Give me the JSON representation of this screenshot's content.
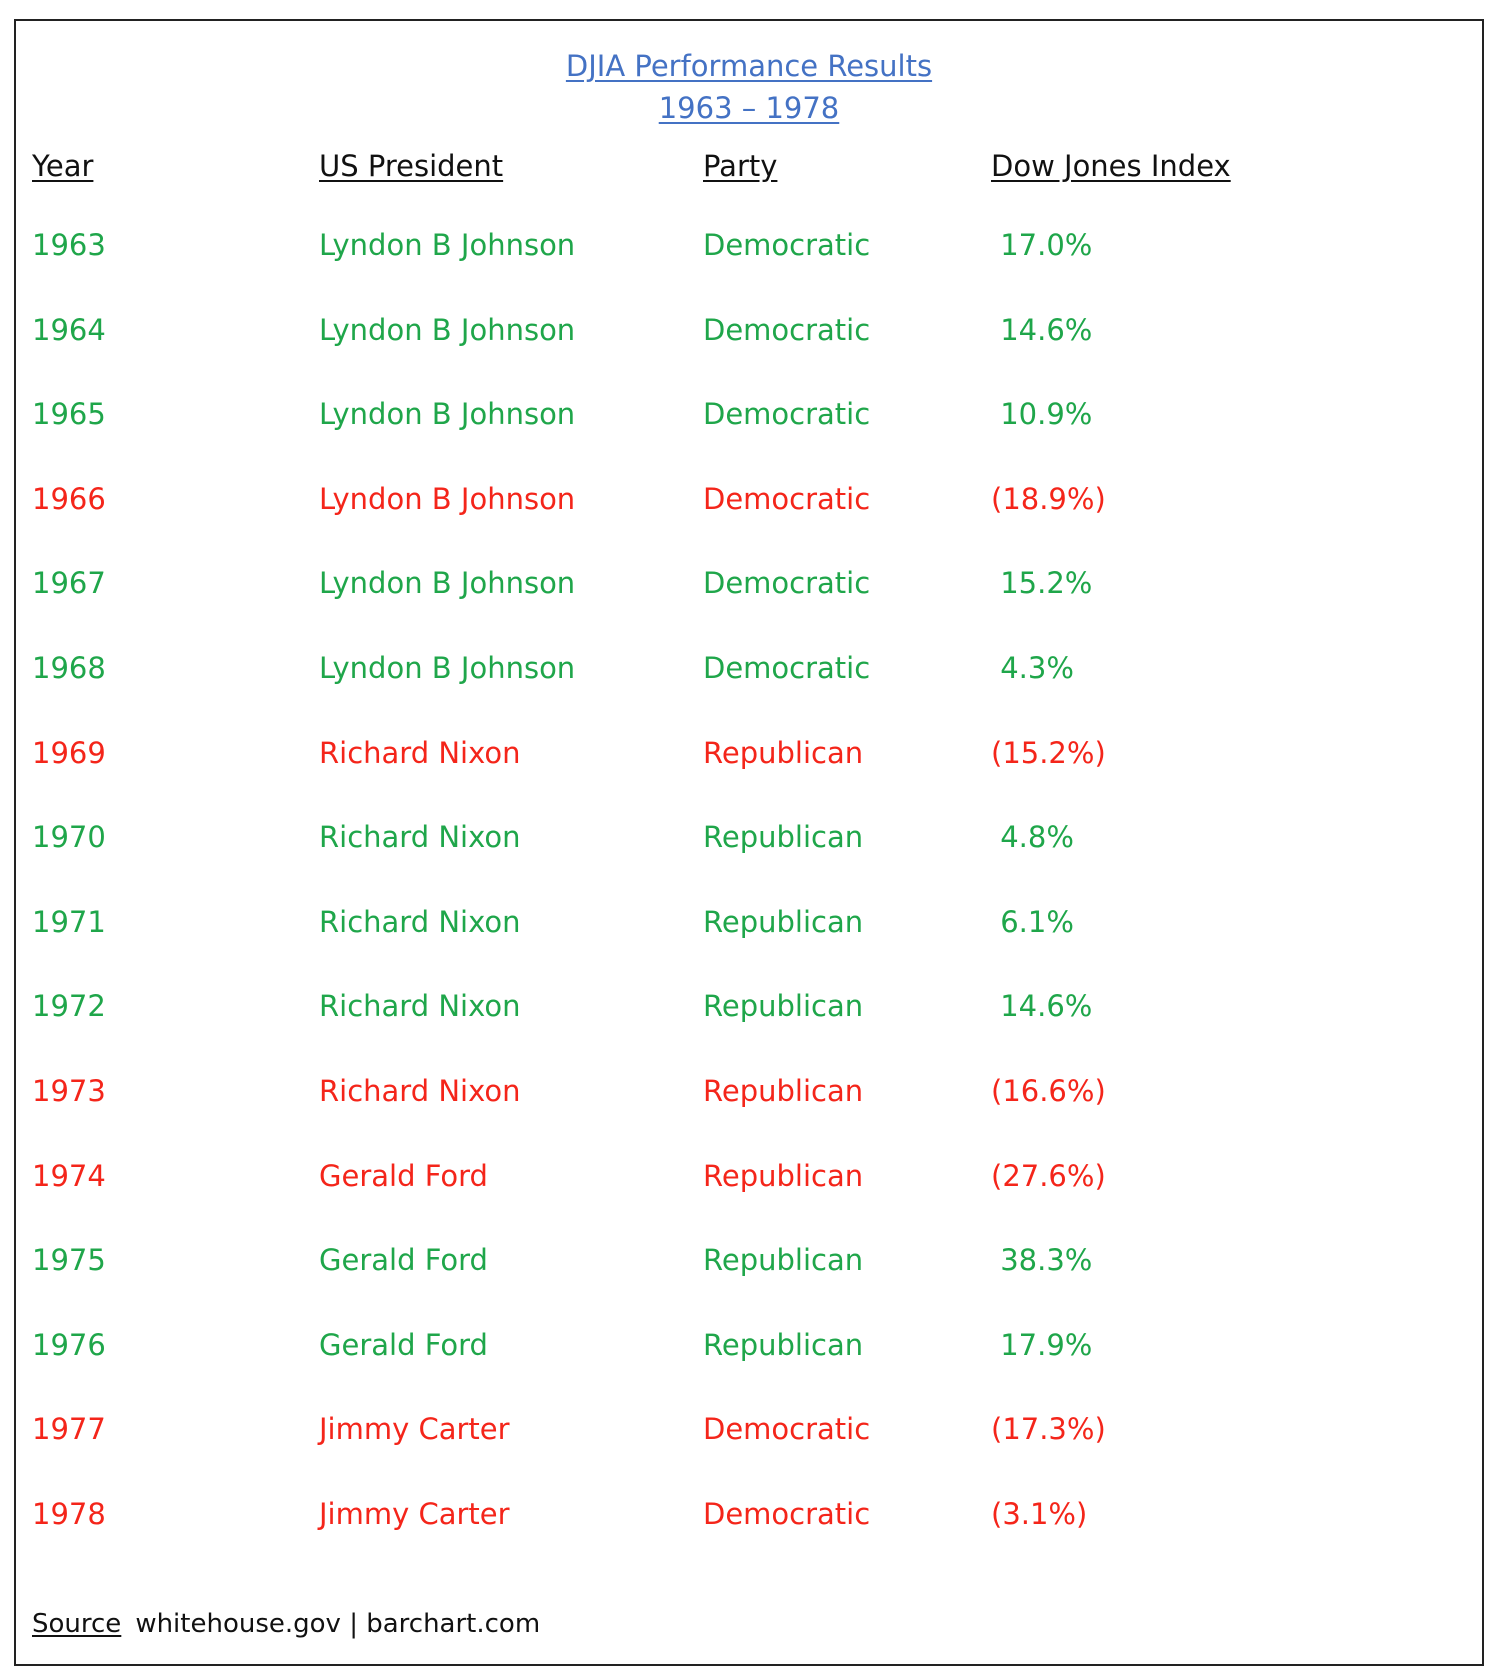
{
  "title": {
    "line1": "DJIA Performance Results",
    "line2": "1963 – 1978"
  },
  "headers": {
    "year": "Year",
    "president": "US President",
    "party": "Party",
    "dow": "Dow Jones Index"
  },
  "colors": {
    "title": "#4472C4",
    "positive": "#1FA64A",
    "negative": "#F4251A",
    "text": "#111111"
  },
  "rows": [
    {
      "year": "1963",
      "president": "Lyndon B Johnson",
      "party": "Democratic",
      "dow": " 17.0%",
      "status": "positive"
    },
    {
      "year": "1964",
      "president": "Lyndon B Johnson",
      "party": "Democratic",
      "dow": " 14.6%",
      "status": "positive"
    },
    {
      "year": "1965",
      "president": "Lyndon B Johnson",
      "party": "Democratic",
      "dow": " 10.9%",
      "status": "positive"
    },
    {
      "year": "1966",
      "president": "Lyndon B Johnson",
      "party": "Democratic",
      "dow": "(18.9%)",
      "status": "negative"
    },
    {
      "year": "1967",
      "president": "Lyndon B Johnson",
      "party": "Democratic",
      "dow": " 15.2%",
      "status": "positive"
    },
    {
      "year": "1968",
      "president": "Lyndon B Johnson",
      "party": "Democratic",
      "dow": " 4.3%",
      "status": "positive"
    },
    {
      "year": "1969",
      "president": "Richard Nixon",
      "party": "Republican",
      "dow": "(15.2%)",
      "status": "negative"
    },
    {
      "year": "1970",
      "president": "Richard Nixon",
      "party": "Republican",
      "dow": " 4.8%",
      "status": "positive"
    },
    {
      "year": "1971",
      "president": "Richard Nixon",
      "party": "Republican",
      "dow": " 6.1%",
      "status": "positive"
    },
    {
      "year": "1972",
      "president": "Richard Nixon",
      "party": "Republican",
      "dow": " 14.6%",
      "status": "positive"
    },
    {
      "year": "1973",
      "president": "Richard Nixon",
      "party": "Republican",
      "dow": "(16.6%)",
      "status": "negative"
    },
    {
      "year": "1974",
      "president": "Gerald Ford",
      "party": "Republican",
      "dow": "(27.6%)",
      "status": "negative"
    },
    {
      "year": "1975",
      "president": "Gerald Ford",
      "party": "Republican",
      "dow": " 38.3%",
      "status": "positive"
    },
    {
      "year": "1976",
      "president": "Gerald Ford",
      "party": "Republican",
      "dow": " 17.9%",
      "status": "positive"
    },
    {
      "year": "1977",
      "president": "Jimmy Carter",
      "party": "Democratic",
      "dow": "(17.3%)",
      "status": "negative"
    },
    {
      "year": "1978",
      "president": "Jimmy Carter",
      "party": "Democratic",
      "dow": "(3.1%)",
      "status": "negative"
    }
  ],
  "footer": {
    "source_label": "Source",
    "source_text": "whitehouse.gov | barchart.com"
  }
}
